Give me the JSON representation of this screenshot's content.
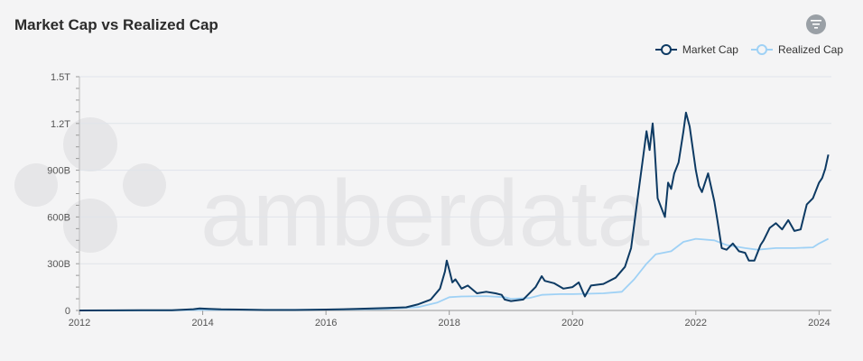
{
  "page": {
    "title": "Market Cap vs Realized Cap"
  },
  "toolbar": {
    "filter_icon": "filter-icon"
  },
  "colors": {
    "market_cap": "#0d3a63",
    "realized_cap": "#9fd1f5",
    "grid": "#dfe3ea",
    "watermark": "#e6e6e8"
  },
  "watermark": {
    "text": "amberdata"
  },
  "chart_data": {
    "type": "line",
    "title": "Market Cap vs Realized Cap",
    "xlabel": "",
    "ylabel": "",
    "xlim": [
      2012.0,
      2024.2
    ],
    "ylim": [
      0,
      1500
    ],
    "y_unit": "billions USD",
    "yticks": [
      {
        "value": 0,
        "label": "0"
      },
      {
        "value": 300,
        "label": "300B"
      },
      {
        "value": 600,
        "label": "600B"
      },
      {
        "value": 900,
        "label": "900B"
      },
      {
        "value": 1200,
        "label": "1.2T"
      },
      {
        "value": 1500,
        "label": "1.5T"
      }
    ],
    "xticks": [
      {
        "value": 2012,
        "label": "2012"
      },
      {
        "value": 2014,
        "label": "2014"
      },
      {
        "value": 2016,
        "label": "2016"
      },
      {
        "value": 2018,
        "label": "2018"
      },
      {
        "value": 2020,
        "label": "2020"
      },
      {
        "value": 2022,
        "label": "2022"
      },
      {
        "value": 2024,
        "label": "2024"
      }
    ],
    "grid": true,
    "legend_position": "top-right",
    "series": [
      {
        "name": "Market Cap",
        "points": [
          [
            2012.0,
            0
          ],
          [
            2013.0,
            1
          ],
          [
            2013.5,
            2
          ],
          [
            2013.85,
            8
          ],
          [
            2013.95,
            13
          ],
          [
            2014.1,
            10
          ],
          [
            2014.3,
            7
          ],
          [
            2014.6,
            6
          ],
          [
            2015.0,
            3
          ],
          [
            2015.5,
            3
          ],
          [
            2016.0,
            6
          ],
          [
            2016.5,
            10
          ],
          [
            2017.0,
            16
          ],
          [
            2017.3,
            20
          ],
          [
            2017.5,
            40
          ],
          [
            2017.7,
            70
          ],
          [
            2017.85,
            140
          ],
          [
            2017.93,
            250
          ],
          [
            2017.96,
            320
          ],
          [
            2018.0,
            260
          ],
          [
            2018.05,
            180
          ],
          [
            2018.1,
            200
          ],
          [
            2018.2,
            140
          ],
          [
            2018.3,
            160
          ],
          [
            2018.45,
            110
          ],
          [
            2018.6,
            120
          ],
          [
            2018.75,
            110
          ],
          [
            2018.85,
            100
          ],
          [
            2018.9,
            70
          ],
          [
            2019.0,
            60
          ],
          [
            2019.2,
            70
          ],
          [
            2019.4,
            150
          ],
          [
            2019.5,
            220
          ],
          [
            2019.55,
            190
          ],
          [
            2019.7,
            175
          ],
          [
            2019.85,
            140
          ],
          [
            2020.0,
            150
          ],
          [
            2020.1,
            180
          ],
          [
            2020.2,
            90
          ],
          [
            2020.3,
            160
          ],
          [
            2020.5,
            170
          ],
          [
            2020.7,
            210
          ],
          [
            2020.85,
            280
          ],
          [
            2020.95,
            400
          ],
          [
            2021.05,
            700
          ],
          [
            2021.15,
            1000
          ],
          [
            2021.2,
            1150
          ],
          [
            2021.25,
            1030
          ],
          [
            2021.3,
            1200
          ],
          [
            2021.33,
            1060
          ],
          [
            2021.38,
            720
          ],
          [
            2021.45,
            650
          ],
          [
            2021.5,
            600
          ],
          [
            2021.55,
            820
          ],
          [
            2021.6,
            780
          ],
          [
            2021.65,
            880
          ],
          [
            2021.72,
            950
          ],
          [
            2021.8,
            1150
          ],
          [
            2021.84,
            1270
          ],
          [
            2021.9,
            1180
          ],
          [
            2022.0,
            900
          ],
          [
            2022.05,
            800
          ],
          [
            2022.1,
            760
          ],
          [
            2022.2,
            880
          ],
          [
            2022.3,
            700
          ],
          [
            2022.35,
            580
          ],
          [
            2022.42,
            400
          ],
          [
            2022.5,
            390
          ],
          [
            2022.6,
            430
          ],
          [
            2022.7,
            380
          ],
          [
            2022.8,
            370
          ],
          [
            2022.86,
            320
          ],
          [
            2022.95,
            320
          ],
          [
            2023.05,
            420
          ],
          [
            2023.1,
            450
          ],
          [
            2023.2,
            530
          ],
          [
            2023.3,
            560
          ],
          [
            2023.4,
            520
          ],
          [
            2023.5,
            580
          ],
          [
            2023.6,
            510
          ],
          [
            2023.7,
            520
          ],
          [
            2023.8,
            680
          ],
          [
            2023.9,
            720
          ],
          [
            2024.0,
            820
          ],
          [
            2024.05,
            850
          ],
          [
            2024.1,
            910
          ],
          [
            2024.15,
            1000
          ]
        ]
      },
      {
        "name": "Realized Cap",
        "points": [
          [
            2012.0,
            0
          ],
          [
            2013.5,
            1
          ],
          [
            2014.0,
            4
          ],
          [
            2015.0,
            4
          ],
          [
            2016.0,
            5
          ],
          [
            2016.5,
            7
          ],
          [
            2017.0,
            10
          ],
          [
            2017.5,
            22
          ],
          [
            2017.8,
            50
          ],
          [
            2018.0,
            85
          ],
          [
            2018.2,
            90
          ],
          [
            2018.6,
            92
          ],
          [
            2018.9,
            85
          ],
          [
            2019.0,
            75
          ],
          [
            2019.3,
            80
          ],
          [
            2019.5,
            100
          ],
          [
            2019.8,
            105
          ],
          [
            2020.0,
            105
          ],
          [
            2020.5,
            110
          ],
          [
            2020.8,
            120
          ],
          [
            2021.0,
            200
          ],
          [
            2021.2,
            300
          ],
          [
            2021.35,
            360
          ],
          [
            2021.6,
            380
          ],
          [
            2021.8,
            440
          ],
          [
            2022.0,
            460
          ],
          [
            2022.3,
            450
          ],
          [
            2022.5,
            420
          ],
          [
            2022.8,
            400
          ],
          [
            2023.0,
            390
          ],
          [
            2023.3,
            400
          ],
          [
            2023.6,
            400
          ],
          [
            2023.9,
            405
          ],
          [
            2024.0,
            430
          ],
          [
            2024.15,
            460
          ]
        ]
      }
    ]
  }
}
